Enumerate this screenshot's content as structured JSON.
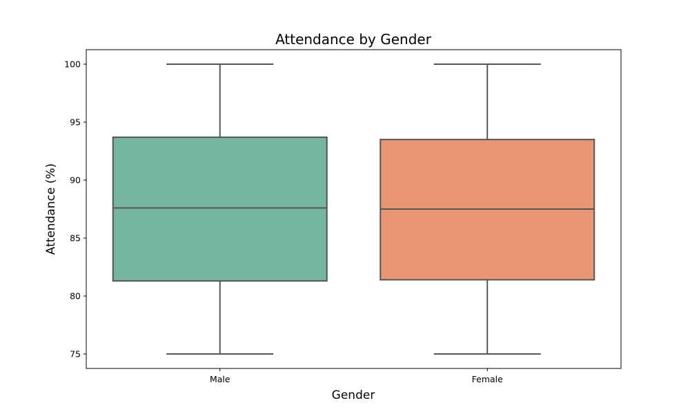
{
  "chart_data": {
    "type": "box",
    "title": "Attendance by Gender",
    "xlabel": "Gender",
    "ylabel": "Attendance (%)",
    "ylim": [
      73.75,
      101.25
    ],
    "yticks": [
      75,
      80,
      85,
      90,
      95,
      100
    ],
    "grid": false,
    "legend": "none",
    "categories": [
      "Male",
      "Female"
    ],
    "boxes": [
      {
        "category": "Male",
        "min": 75,
        "q1": 81.3,
        "median": 87.6,
        "q3": 93.7,
        "max": 100,
        "color": "#73b5a1"
      },
      {
        "category": "Female",
        "min": 75,
        "q1": 81.4,
        "median": 87.5,
        "q3": 93.5,
        "max": 100,
        "color": "#e99675"
      }
    ],
    "line_color": "#555555"
  }
}
